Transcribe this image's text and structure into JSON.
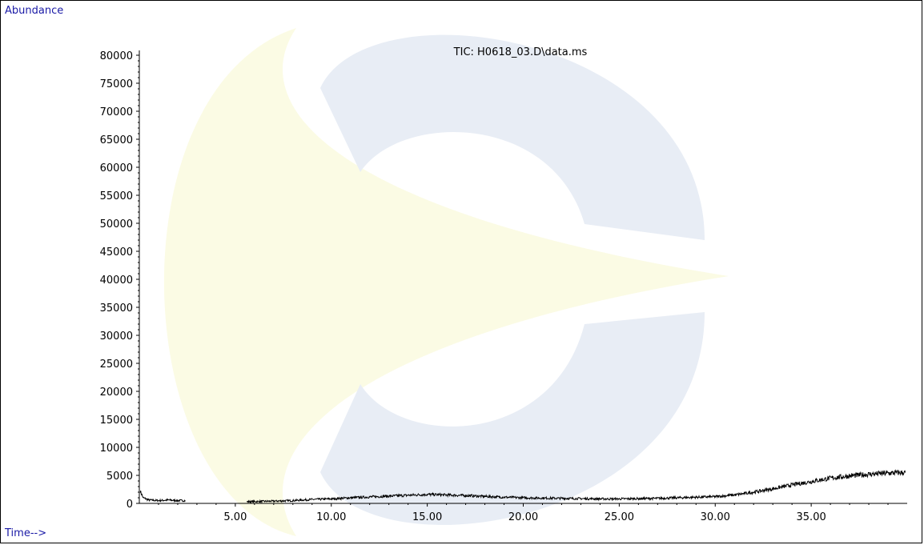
{
  "chart_data": {
    "type": "line",
    "title": "TIC: H0618_03.D\\data.ms",
    "ylabel": "Abundance",
    "xlabel": "Time-->",
    "xlim": [
      0,
      40
    ],
    "ylim": [
      0,
      80000
    ],
    "x_ticks": [
      5,
      10,
      15,
      20,
      25,
      30,
      35
    ],
    "x_tick_labels": [
      "5.00",
      "10.00",
      "15.00",
      "20.00",
      "25.00",
      "30.00",
      "35.00"
    ],
    "y_ticks": [
      0,
      5000,
      10000,
      15000,
      20000,
      25000,
      30000,
      35000,
      40000,
      45000,
      50000,
      55000,
      60000,
      65000,
      70000,
      75000,
      80000
    ],
    "y_tick_labels": [
      "0",
      "5000",
      "10000",
      "15000",
      "20000",
      "25000",
      "30000",
      "35000",
      "40000",
      "45000",
      "50000",
      "55000",
      "60000",
      "65000",
      "70000",
      "75000",
      "80000"
    ],
    "grid": false,
    "series": [
      {
        "color": "#000000",
        "segments": [
          {
            "x": [
              0.05,
              0.2,
              0.5,
              1.0,
              1.5,
              2.0,
              2.4
            ],
            "y": [
              2200,
              1000,
              600,
              500,
              600,
              500,
              500
            ]
          },
          {
            "x": [
              5.6,
              7.0,
              8.0,
              9.0,
              10.0,
              11.0,
              12.0,
              13.0,
              14.0,
              15.0,
              16.0,
              17.0,
              18.0,
              19.0,
              20.0,
              21.0,
              22.0,
              23.0,
              24.0,
              25.0,
              26.0,
              27.0,
              28.0,
              29.0,
              30.0,
              31.0,
              32.0,
              33.0,
              34.0,
              35.0,
              36.0,
              37.0,
              38.0,
              39.0,
              39.9
            ],
            "y": [
              300,
              400,
              500,
              700,
              800,
              1000,
              1150,
              1300,
              1450,
              1600,
              1500,
              1400,
              1250,
              1100,
              1000,
              950,
              900,
              850,
              800,
              800,
              850,
              900,
              1000,
              1100,
              1200,
              1500,
              2000,
              2600,
              3300,
              3900,
              4500,
              4900,
              5200,
              5400,
              5500
            ]
          }
        ],
        "noise_amplitude": [
          150,
          500
        ]
      }
    ]
  }
}
